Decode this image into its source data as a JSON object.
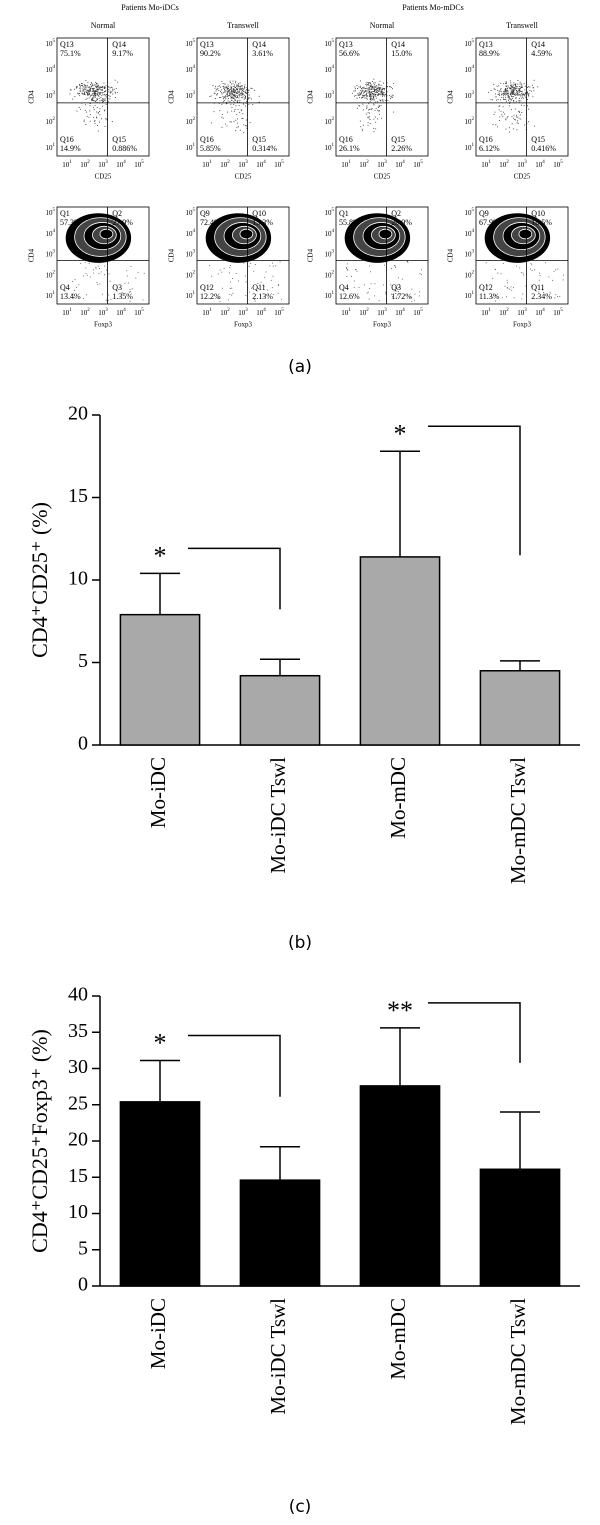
{
  "panel_a": {
    "label": "(a)",
    "groups": [
      "Patients Mo-iDCs",
      "Patients Mo-mDCs"
    ],
    "columns": [
      "Normal",
      "Transwell",
      "Normal",
      "Transwell"
    ],
    "y_axis": "CD4",
    "tick_base": "10",
    "tick_exps": [
      "1",
      "2",
      "3",
      "4",
      "5"
    ],
    "rows": [
      {
        "x_axis": "CD25",
        "plots": [
          {
            "quadrants": [
              {
                "name": "Q13",
                "value": "75.1%"
              },
              {
                "name": "Q14",
                "value": "9.17%"
              },
              {
                "name": "Q16",
                "value": "14.9%"
              },
              {
                "name": "Q15",
                "value": "0.886%"
              }
            ]
          },
          {
            "quadrants": [
              {
                "name": "Q13",
                "value": "90.2%"
              },
              {
                "name": "Q14",
                "value": "3.61%"
              },
              {
                "name": "Q16",
                "value": "5.85%"
              },
              {
                "name": "Q15",
                "value": "0.314%"
              }
            ]
          },
          {
            "quadrants": [
              {
                "name": "Q13",
                "value": "56.6%"
              },
              {
                "name": "Q14",
                "value": "15.0%"
              },
              {
                "name": "Q16",
                "value": "26.1%"
              },
              {
                "name": "Q15",
                "value": "2.26%"
              }
            ]
          },
          {
            "quadrants": [
              {
                "name": "Q13",
                "value": "88.9%"
              },
              {
                "name": "Q14",
                "value": "4.59%"
              },
              {
                "name": "Q16",
                "value": "6.12%"
              },
              {
                "name": "Q15",
                "value": "0.416%"
              }
            ]
          }
        ]
      },
      {
        "x_axis": "Foxp3",
        "plots": [
          {
            "quadrants": [
              {
                "name": "Q1",
                "value": "57.3%"
              },
              {
                "name": "Q2",
                "value": "27.9%"
              },
              {
                "name": "Q4",
                "value": "13.4%"
              },
              {
                "name": "Q3",
                "value": "1.35%"
              }
            ]
          },
          {
            "quadrants": [
              {
                "name": "Q9",
                "value": "72.4%"
              },
              {
                "name": "Q10",
                "value": "13.3%"
              },
              {
                "name": "Q12",
                "value": "12.2%"
              },
              {
                "name": "Q11",
                "value": "2.13%"
              }
            ]
          },
          {
            "quadrants": [
              {
                "name": "Q1",
                "value": "55.8%"
              },
              {
                "name": "Q2",
                "value": "29.9%"
              },
              {
                "name": "Q4",
                "value": "12.6%"
              },
              {
                "name": "Q3",
                "value": "1.72%"
              }
            ]
          },
          {
            "quadrants": [
              {
                "name": "Q9",
                "value": "67.9%"
              },
              {
                "name": "Q10",
                "value": "18.5%"
              },
              {
                "name": "Q12",
                "value": "11.3%"
              },
              {
                "name": "Q11",
                "value": "2.34%"
              }
            ]
          }
        ]
      }
    ]
  },
  "chart_data": [
    {
      "type": "bar",
      "label": "(b)",
      "y_label": "CD4⁺CD25⁺ (%)",
      "categories": [
        "Mo-iDC",
        "Mo-iDC Tswl",
        "Mo-mDC",
        "Mo-mDC Tswl"
      ],
      "values": [
        7.9,
        4.2,
        11.4,
        4.5
      ],
      "errors": [
        2.5,
        1.0,
        6.4,
        0.6
      ],
      "color": "#a9a9a9",
      "ylim": [
        0,
        20
      ],
      "yticks": [
        0,
        5,
        10,
        15,
        20
      ],
      "annotations": [
        "*",
        "*"
      ]
    },
    {
      "type": "bar",
      "label": "(c)",
      "y_label": "CD4⁺CD25⁺Foxp3⁺ (%)",
      "categories": [
        "Mo-iDC",
        "Mo-iDC Tswl",
        "Mo-mDC",
        "Mo-mDC Tswl"
      ],
      "values": [
        25.4,
        14.6,
        27.6,
        16.1
      ],
      "errors": [
        5.7,
        4.6,
        8.0,
        7.9
      ],
      "color": "#000000",
      "ylim": [
        0,
        40
      ],
      "yticks": [
        0,
        5,
        10,
        15,
        20,
        25,
        30,
        35,
        40
      ],
      "annotations": [
        "*",
        "**"
      ]
    }
  ]
}
